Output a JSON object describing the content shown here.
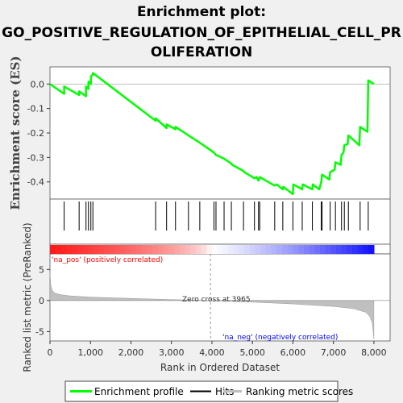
{
  "title_line1": "Enrichment plot:",
  "title_line2": "GO_POSITIVE_REGULATION_OF_EPITHELIAL_CELL_PR",
  "title_line3": "OLIFERATION",
  "colors": {
    "enrichment": "#00ff00",
    "hits": "#000000",
    "ranking": "#c0c0c0",
    "pos_label": "#ff0000",
    "neg_label": "#0000ff"
  },
  "chart_data": [
    {
      "type": "line",
      "name": "enrichment-profile",
      "ylabel": "Enrichment score (ES)",
      "xlim": [
        0,
        8400
      ],
      "ylim": [
        -0.47,
        0.07
      ],
      "yticks": [
        0.0,
        -0.1,
        -0.2,
        -0.3,
        -0.4
      ],
      "ytick_labels": [
        "0.0",
        "-0.1",
        "-0.2",
        "-0.3",
        "-0.4"
      ],
      "x": [
        0,
        350,
        351,
        720,
        721,
        890,
        891,
        950,
        951,
        1010,
        1011,
        1060,
        1061,
        2610,
        2611,
        2880,
        2881,
        3100,
        3101,
        3420,
        3700,
        4050,
        4100,
        4300,
        4480,
        4500,
        4780,
        4800,
        5050,
        5100,
        5150,
        5180,
        5550,
        5600,
        5750,
        5760,
        6000,
        6010,
        6230,
        6240,
        6480,
        6490,
        6650,
        6700,
        6720,
        6900,
        6920,
        7030,
        7050,
        7180,
        7200,
        7250,
        7270,
        7350,
        7370,
        7640,
        7660,
        7840,
        7860,
        8000
      ],
      "y": [
        0.0,
        -0.04,
        -0.01,
        -0.045,
        -0.03,
        -0.05,
        -0.01,
        -0.02,
        0.01,
        0.0,
        0.03,
        0.04,
        0.045,
        -0.15,
        -0.14,
        -0.18,
        -0.165,
        -0.185,
        -0.175,
        -0.21,
        -0.24,
        -0.28,
        -0.29,
        -0.305,
        -0.325,
        -0.33,
        -0.355,
        -0.36,
        -0.385,
        -0.38,
        -0.395,
        -0.38,
        -0.415,
        -0.41,
        -0.43,
        -0.42,
        -0.45,
        -0.41,
        -0.43,
        -0.41,
        -0.43,
        -0.41,
        -0.43,
        -0.4,
        -0.37,
        -0.39,
        -0.36,
        -0.35,
        -0.32,
        -0.33,
        -0.29,
        -0.28,
        -0.25,
        -0.245,
        -0.21,
        -0.25,
        -0.175,
        -0.195,
        0.015,
        0.0
      ]
    },
    {
      "type": "scatter",
      "name": "hits",
      "hit_positions": [
        350,
        720,
        890,
        950,
        1010,
        1060,
        2610,
        2880,
        3100,
        3420,
        3700,
        4050,
        4100,
        4300,
        4480,
        4780,
        5050,
        5150,
        5180,
        5550,
        5750,
        6000,
        6230,
        6480,
        6700,
        6720,
        6920,
        7050,
        7200,
        7270,
        7370,
        7660,
        7860
      ]
    },
    {
      "type": "area",
      "name": "ranking-metric",
      "ylabel": "Ranked list metric (PreRanked)",
      "xlabel": "Rank in Ordered Dataset",
      "xlim": [
        0,
        8400
      ],
      "ylim": [
        -6.5,
        7.5
      ],
      "xticks": [
        0,
        1000,
        2000,
        3000,
        4000,
        5000,
        6000,
        7000,
        8000
      ],
      "xtick_labels": [
        "0",
        "1,000",
        "2,000",
        "3,000",
        "4,000",
        "5,000",
        "6,000",
        "7,000",
        "8,000"
      ],
      "yticks": [
        5,
        0,
        -5
      ],
      "ytick_labels": [
        "5",
        "0",
        "-5"
      ],
      "x": [
        0,
        20,
        60,
        120,
        250,
        500,
        1000,
        2000,
        3000,
        3965,
        5000,
        6000,
        7000,
        7500,
        7800,
        7900,
        7960,
        7990,
        8000
      ],
      "y": [
        4.5,
        2.5,
        1.6,
        1.2,
        0.95,
        0.75,
        0.55,
        0.35,
        0.15,
        0.0,
        -0.25,
        -0.55,
        -0.95,
        -1.3,
        -1.9,
        -2.6,
        -3.6,
        -5.5,
        -6.2
      ]
    }
  ],
  "annotations": {
    "pos": "'na_pos' (positively correlated)",
    "neg": "'na_neg' (negatively correlated)",
    "zero_cross": "Zero cross at 3965"
  },
  "legend": {
    "enrichment": "Enrichment profile",
    "hits": "Hits",
    "ranking": "Ranking metric scores"
  }
}
